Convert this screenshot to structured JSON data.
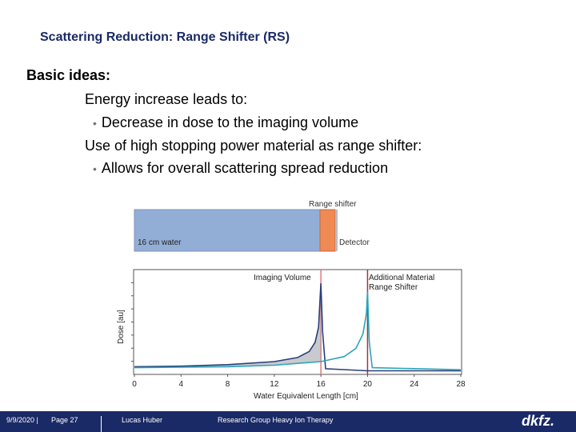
{
  "slide": {
    "title": "Scattering Reduction: Range Shifter (RS)",
    "subheading": "Basic ideas:",
    "lines": [
      "Energy increase leads to:",
      "Decrease in dose to the imaging volume",
      "Use of high stopping power material as range shifter:",
      "Allows for overall scattering spread reduction"
    ],
    "bullet_glyph": "•"
  },
  "diagram": {
    "range_shifter_label": "Range shifter",
    "water_label": "16 cm water",
    "detector_label": "Detector",
    "colors": {
      "water": "#93aed6",
      "shifter": "#f08a55",
      "detector": "#b9bcc6"
    }
  },
  "chart_data": {
    "type": "line",
    "xlabel": "Water Equivalent Length [cm]",
    "ylabel": "Dose [au]",
    "xlim": [
      0,
      28
    ],
    "x_ticks": [
      "0",
      "4",
      "8",
      "12",
      "16",
      "20",
      "24",
      "28"
    ],
    "annotations": [
      "Imaging Volume",
      "Additional Material",
      "Range Shifter"
    ],
    "markers": [
      {
        "x": 16,
        "color": "#e07a7a"
      },
      {
        "x": 20,
        "color": "#b0303a"
      }
    ],
    "series": [
      {
        "color": "#2a3f7a",
        "points": [
          [
            0,
            0.06
          ],
          [
            4,
            0.065
          ],
          [
            8,
            0.08
          ],
          [
            12,
            0.11
          ],
          [
            14,
            0.15
          ],
          [
            15,
            0.21
          ],
          [
            15.5,
            0.3
          ],
          [
            15.8,
            0.45
          ],
          [
            16,
            0.88
          ],
          [
            16.15,
            0.4
          ],
          [
            16.4,
            0.04
          ],
          [
            20,
            0.02
          ],
          [
            28,
            0.02
          ]
        ]
      },
      {
        "color": "#2aa5b8",
        "points": [
          [
            0,
            0.05
          ],
          [
            4,
            0.055
          ],
          [
            8,
            0.06
          ],
          [
            12,
            0.075
          ],
          [
            16,
            0.11
          ],
          [
            18,
            0.16
          ],
          [
            19,
            0.24
          ],
          [
            19.6,
            0.38
          ],
          [
            19.9,
            0.58
          ],
          [
            20,
            0.8
          ],
          [
            20.15,
            0.3
          ],
          [
            20.4,
            0.05
          ],
          [
            28,
            0.03
          ]
        ]
      }
    ]
  },
  "footer": {
    "date": "9/9/2020 |",
    "page": "Page 27",
    "author": "Lucas Huber",
    "group": "Research Group Heavy Ion Therapy",
    "logo": "dkfz."
  }
}
